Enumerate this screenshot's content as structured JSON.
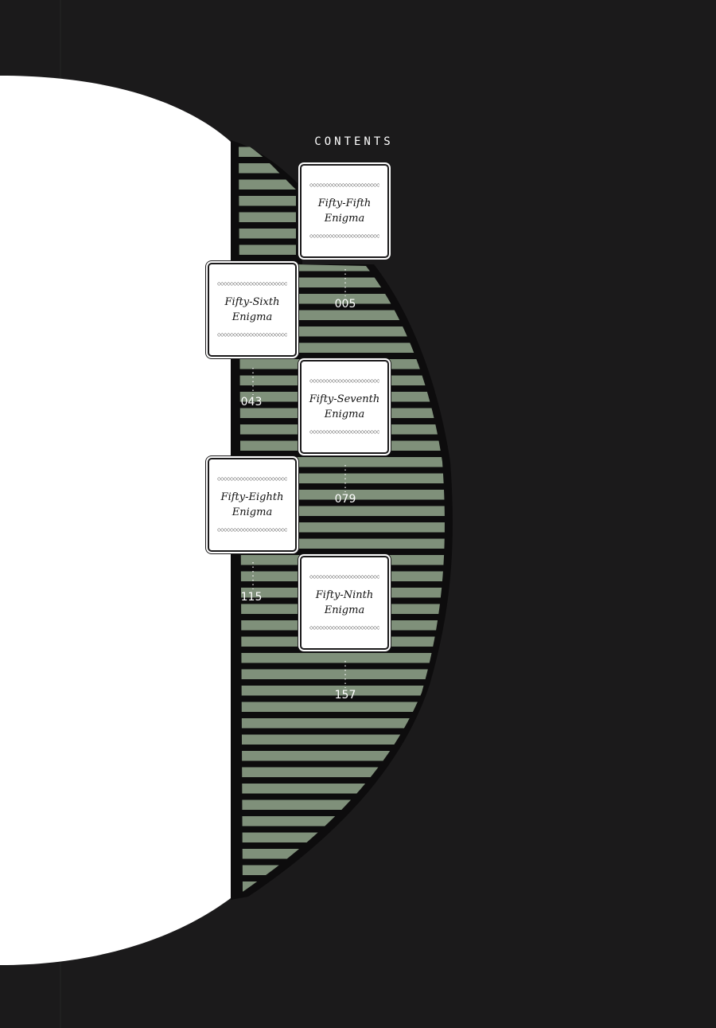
{
  "heading": "CONTENTS",
  "chapters": [
    {
      "title": "Fifty-Fifth Enigma",
      "page": "005"
    },
    {
      "title": "Fifty-Sixth Enigma",
      "page": "043"
    },
    {
      "title": "Fifty-Seventh Enigma",
      "page": "079"
    },
    {
      "title": "Fifty-Eighth Enigma",
      "page": "115"
    },
    {
      "title": "Fifty-Ninth Enigma",
      "page": "157"
    }
  ],
  "colors": {
    "background": "#1b1a1b",
    "stripe_green": "#7f907a",
    "panel_white": "#ffffff"
  }
}
